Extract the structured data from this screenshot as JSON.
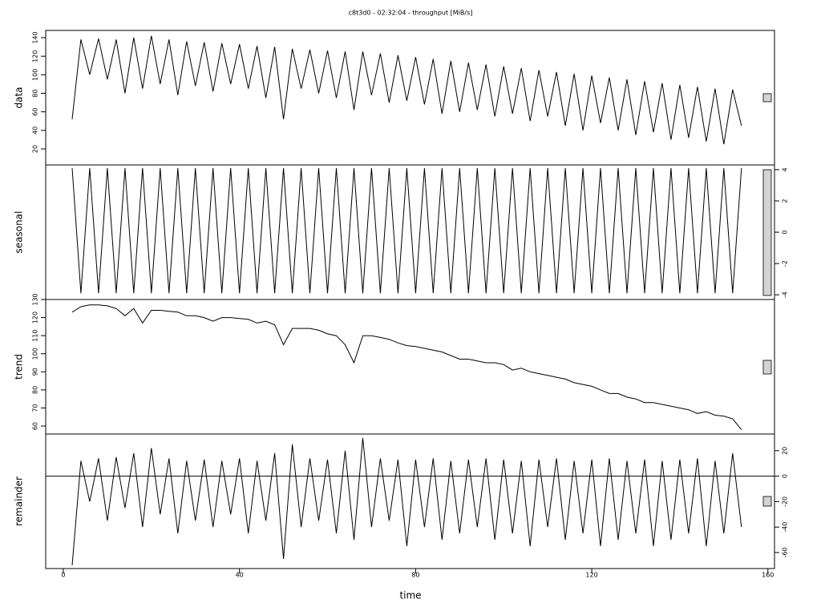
{
  "chart_data": {
    "type": "line",
    "title": "c8t3d0 - 02:32:04 - throughput [MiB/s]",
    "xlabel": "time",
    "xlim": [
      -4,
      161.5
    ],
    "xticks": [
      0,
      40,
      80,
      120,
      160
    ],
    "color": "#000000",
    "x": [
      2,
      4,
      6,
      8,
      10,
      12,
      14,
      16,
      18,
      20,
      22,
      24,
      26,
      28,
      30,
      32,
      34,
      36,
      38,
      40,
      42,
      44,
      46,
      48,
      50,
      52,
      54,
      56,
      58,
      60,
      62,
      64,
      66,
      68,
      70,
      72,
      74,
      76,
      78,
      80,
      82,
      84,
      86,
      88,
      90,
      92,
      94,
      96,
      98,
      100,
      102,
      104,
      106,
      108,
      110,
      112,
      114,
      116,
      118,
      120,
      122,
      124,
      126,
      128,
      130,
      132,
      134,
      136,
      138,
      140,
      142,
      144,
      146,
      148,
      150,
      152,
      154
    ],
    "panels": [
      {
        "ylabel": "data",
        "axis_side": "left",
        "ylim": [
          2.7,
          147.8
        ],
        "yticks": [
          20,
          40,
          60,
          80,
          100,
          120,
          140
        ],
        "values": [
          52,
          138,
          100,
          139,
          95,
          138,
          80,
          140,
          85,
          142,
          90,
          138,
          78,
          136,
          88,
          135,
          82,
          134,
          90,
          133,
          85,
          131,
          75,
          130,
          52,
          128,
          85,
          127,
          80,
          126,
          75,
          125,
          62,
          125,
          78,
          123,
          70,
          121,
          72,
          119,
          68,
          117,
          58,
          115,
          60,
          113,
          62,
          111,
          55,
          109,
          58,
          107,
          50,
          105,
          55,
          103,
          45,
          101,
          40,
          99,
          48,
          97,
          40,
          95,
          35,
          93,
          38,
          91,
          30,
          89,
          32,
          87,
          28,
          85,
          25,
          84,
          45
        ]
      },
      {
        "ylabel": "seasonal",
        "axis_side": "right",
        "ylim": [
          -4.3,
          4.3
        ],
        "yticks": [
          -4,
          -2,
          0,
          2,
          4
        ],
        "values": [
          4.1,
          -3.9,
          4.1,
          -3.9,
          4.1,
          -3.9,
          4.1,
          -3.9,
          4.1,
          -3.9,
          4.1,
          -3.9,
          4.1,
          -3.9,
          4.1,
          -3.9,
          4.1,
          -3.9,
          4.1,
          -3.9,
          4.1,
          -3.9,
          4.1,
          -3.9,
          4.1,
          -3.9,
          4.1,
          -3.9,
          4.1,
          -3.9,
          4.1,
          -3.9,
          4.1,
          -3.9,
          4.1,
          -3.9,
          4.1,
          -3.9,
          4.1,
          -3.9,
          4.1,
          -3.9,
          4.1,
          -3.9,
          4.1,
          -3.9,
          4.1,
          -3.9,
          4.1,
          -3.9,
          4.1,
          -3.9,
          4.1,
          -3.9,
          4.1,
          -3.9,
          4.1,
          -3.9,
          4.1,
          -3.9,
          4.1,
          -3.9,
          4.1,
          -3.9,
          4.1,
          -3.9,
          4.1,
          -3.9,
          4.1,
          -3.9,
          4.1,
          -3.9,
          4.1,
          -3.9,
          4.1,
          -3.9,
          4.1
        ]
      },
      {
        "ylabel": "trend",
        "axis_side": "left",
        "ylim": [
          55.6,
          130
        ],
        "yticks": [
          60,
          70,
          80,
          90,
          100,
          110,
          120,
          130
        ],
        "values": [
          123,
          126,
          127,
          127,
          126.5,
          125,
          121,
          125,
          117,
          124,
          124,
          123.5,
          123,
          121,
          121,
          120,
          118,
          120,
          120,
          119.5,
          119,
          117,
          118,
          116,
          105,
          114,
          114,
          114,
          113,
          111,
          110,
          105,
          95,
          110,
          110,
          109,
          108,
          106,
          104.5,
          104,
          103,
          102,
          101,
          99,
          97,
          97,
          96,
          95,
          95,
          94,
          91,
          92,
          90,
          89,
          88,
          87,
          86,
          84,
          83,
          82,
          80,
          78,
          78,
          76,
          75,
          73,
          73,
          72,
          71,
          70,
          69,
          67,
          68,
          66,
          65.5,
          64,
          58
        ]
      },
      {
        "ylabel": "remainder",
        "axis_side": "right",
        "ylim": [
          -72.6,
          33.1
        ],
        "yticks": [
          -60,
          -40,
          -20,
          0,
          20
        ],
        "values": [
          -70,
          12,
          -20,
          14,
          -35,
          15,
          -25,
          18,
          -40,
          22,
          -30,
          14,
          -45,
          12,
          -35,
          13,
          -40,
          12,
          -30,
          14,
          -45,
          12,
          -35,
          18,
          -65,
          25,
          -40,
          14,
          -35,
          13,
          -45,
          20,
          -50,
          30,
          -40,
          14,
          -35,
          13,
          -55,
          13,
          -40,
          14,
          -50,
          12,
          -45,
          13,
          -40,
          14,
          -50,
          13,
          -45,
          12,
          -55,
          13,
          -40,
          14,
          -50,
          12,
          -45,
          13,
          -55,
          14,
          -50,
          12,
          -45,
          13,
          -55,
          12,
          -50,
          13,
          -45,
          14,
          -55,
          12,
          -45,
          18,
          -40
        ]
      }
    ]
  }
}
